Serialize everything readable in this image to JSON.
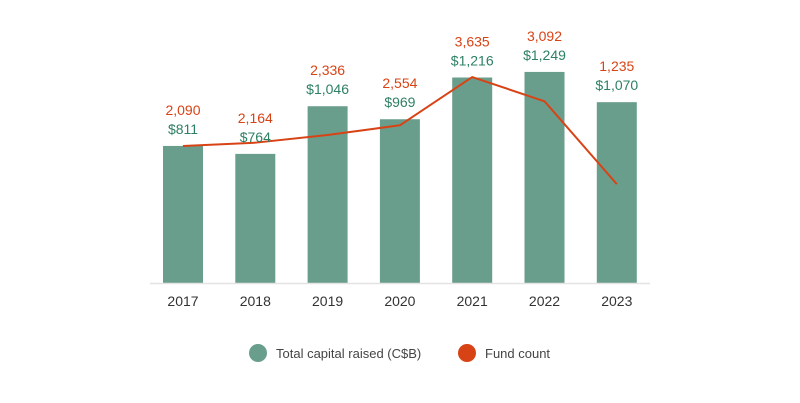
{
  "chart_data": {
    "type": "bar+line",
    "categories": [
      "2017",
      "2018",
      "2019",
      "2020",
      "2021",
      "2022",
      "2023"
    ],
    "series": [
      {
        "name": "Total capital raised (C$B)",
        "type": "bar",
        "values": [
          811,
          764,
          1046,
          969,
          1216,
          1249,
          1070
        ],
        "labels": [
          "$811",
          "$764",
          "$1,046",
          "$969",
          "$1,216",
          "$1,249",
          "$1,070"
        ],
        "color": "#6a9e8c",
        "label_color": "#2e8063"
      },
      {
        "name": "Fund count",
        "type": "line",
        "values": [
          2090,
          2164,
          2336,
          2554,
          3635,
          3092,
          1235
        ],
        "labels": [
          "2,090",
          "2,164",
          "2,336",
          "2,554",
          "3,635",
          "3,092",
          "1,235"
        ],
        "color": "#d84315",
        "label_color": "#d84315"
      }
    ],
    "bar_ylim": [
      0,
      1500
    ],
    "line_ylim": [
      -980,
      4700
    ],
    "grid": false,
    "legend_placement": "bottom"
  }
}
